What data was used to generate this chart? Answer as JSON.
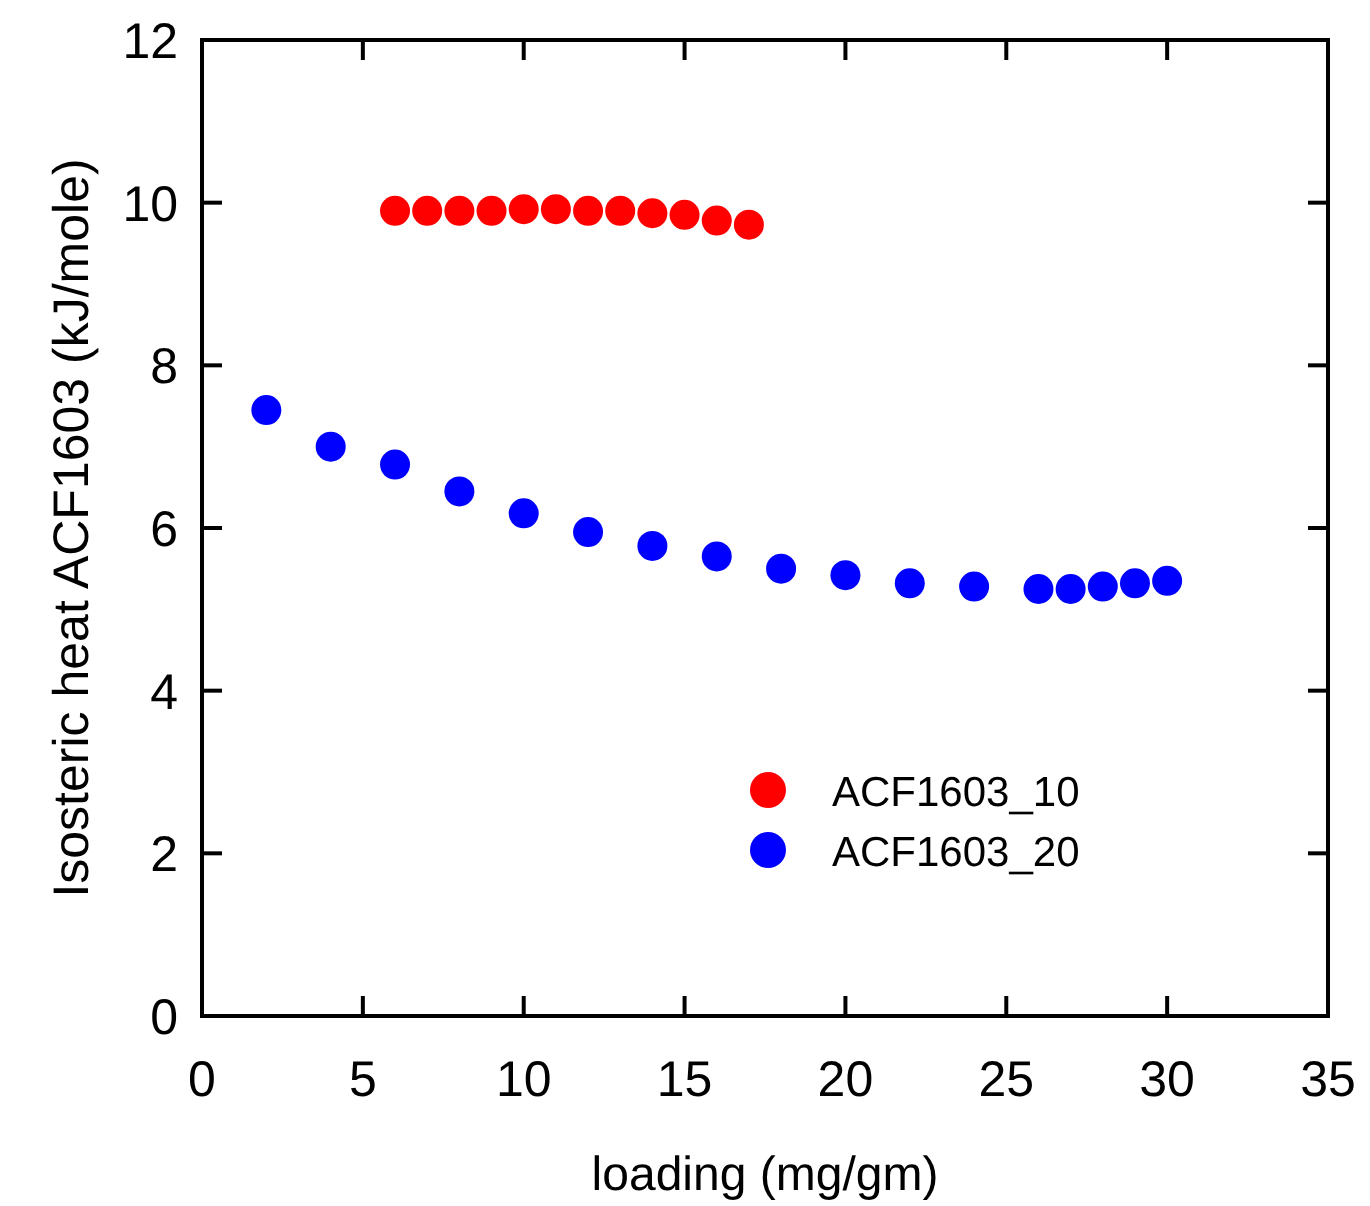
{
  "chart_data": {
    "type": "scatter",
    "xlabel": "loading (mg/gm)",
    "ylabel": "Isosteric heat ACF1603 (kJ/mole)",
    "xlim": [
      0,
      35
    ],
    "xticks": [
      0,
      5,
      10,
      15,
      20,
      25,
      30,
      35
    ],
    "ylim": [
      0,
      12
    ],
    "yticks": [
      0,
      2,
      4,
      6,
      8,
      10,
      12
    ],
    "grid": false,
    "legend": "bottom right",
    "marker": "circle",
    "series": [
      {
        "name": "ACF1603_10",
        "color": "#ff0000",
        "x": [
          6,
          7,
          8,
          9,
          10,
          11,
          12,
          13,
          14,
          15,
          16,
          17
        ],
        "values": [
          9.9,
          9.9,
          9.9,
          9.9,
          9.92,
          9.92,
          9.9,
          9.9,
          9.87,
          9.85,
          9.78,
          9.73
        ]
      },
      {
        "name": "ACF1603_20",
        "color": "#0000ff",
        "x": [
          2,
          4,
          6,
          8,
          10,
          12,
          14,
          16,
          18,
          20,
          22,
          24,
          26,
          27,
          28,
          29,
          30
        ],
        "values": [
          7.45,
          7.0,
          6.78,
          6.45,
          6.18,
          5.95,
          5.78,
          5.65,
          5.5,
          5.42,
          5.32,
          5.28,
          5.25,
          5.25,
          5.28,
          5.32,
          5.35
        ]
      }
    ]
  }
}
